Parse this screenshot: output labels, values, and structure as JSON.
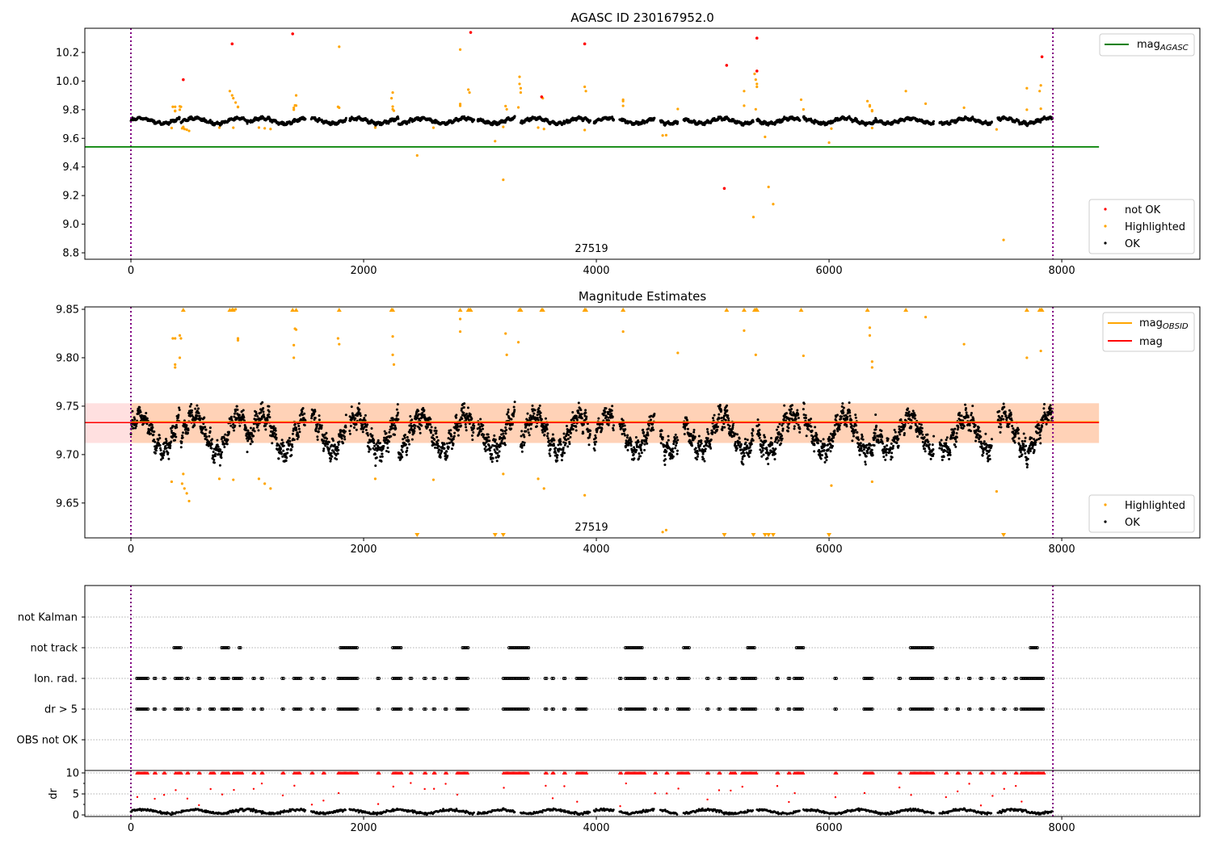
{
  "chart_data": [
    {
      "type": "scatter",
      "title": "AGASC ID 230167952.0",
      "xlim": [
        -396,
        9187
      ],
      "ylim": [
        8.755,
        10.369
      ],
      "xticks": [
        "0",
        "2000",
        "4000",
        "6000",
        "8000"
      ],
      "yticks": [
        "8.8",
        "9.0",
        "9.2",
        "9.4",
        "9.6",
        "9.8",
        "10.0",
        "10.2"
      ],
      "annotation": "27519",
      "legend_top": {
        "label": "mag",
        "sub": "AGASC",
        "color": "#008000"
      },
      "legend_bottom": [
        {
          "label": "not OK",
          "color": "#ff0000"
        },
        {
          "label": "Highlighted",
          "color": "#ffa500"
        },
        {
          "label": "OK",
          "color": "#000000"
        }
      ],
      "mag_agasc": 9.54,
      "vlines": [
        0,
        7924
      ],
      "not_ok": [
        [
          450,
          10.01
        ],
        [
          870,
          10.26
        ],
        [
          1390,
          10.33
        ],
        [
          2920,
          10.34
        ],
        [
          3530,
          9.89
        ],
        [
          3900,
          10.26
        ],
        [
          5100,
          9.25
        ],
        [
          5120,
          10.11
        ],
        [
          5380,
          10.3
        ],
        [
          5380,
          10.07
        ],
        [
          7830,
          10.17
        ]
      ]
    },
    {
      "type": "scatter",
      "title": "Magnitude Estimates",
      "xlim": [
        -396,
        9187
      ],
      "ylim": [
        9.614,
        9.8525
      ],
      "xticks": [
        "0",
        "2000",
        "4000",
        "6000",
        "8000"
      ],
      "yticks": [
        "9.65",
        "9.70",
        "9.75",
        "9.80",
        "9.85"
      ],
      "annotation": "27519",
      "legend_top": [
        {
          "label": "mag",
          "sub": "OBSID",
          "color": "#ffa500"
        },
        {
          "label": "mag",
          "sub": "",
          "color": "#ff0000"
        }
      ],
      "legend_bottom": [
        {
          "label": "Highlighted",
          "color": "#ffa500"
        },
        {
          "label": "OK",
          "color": "#000000"
        }
      ],
      "mag": 9.733,
      "mag_band": [
        9.712,
        9.753
      ],
      "band_end": 8320
    },
    {
      "type": "scatter",
      "title": "",
      "categories": [
        "not Kalman",
        "not track",
        "Ion. rad.",
        "dr > 5",
        "OBS not OK"
      ],
      "not_track_ranges": [
        [
          370,
          430
        ],
        [
          780,
          850
        ],
        [
          930,
          950
        ],
        [
          1800,
          1950
        ],
        [
          2250,
          2330
        ],
        [
          2850,
          2900
        ],
        [
          3250,
          3420
        ],
        [
          4250,
          4400
        ],
        [
          4750,
          4800
        ],
        [
          5300,
          5360
        ],
        [
          5720,
          5780
        ],
        [
          6700,
          6900
        ],
        [
          7730,
          7800
        ]
      ],
      "flag_ranges": [
        [
          50,
          150
        ],
        [
          200,
          220
        ],
        [
          280,
          300
        ],
        [
          380,
          440
        ],
        [
          480,
          500
        ],
        [
          580,
          600
        ],
        [
          680,
          720
        ],
        [
          780,
          850
        ],
        [
          880,
          960
        ],
        [
          1050,
          1070
        ],
        [
          1120,
          1140
        ],
        [
          1300,
          1320
        ],
        [
          1400,
          1460
        ],
        [
          1550,
          1570
        ],
        [
          1650,
          1670
        ],
        [
          1780,
          1950
        ],
        [
          2120,
          2140
        ],
        [
          2250,
          2330
        ],
        [
          2400,
          2420
        ],
        [
          2520,
          2540
        ],
        [
          2600,
          2620
        ],
        [
          2700,
          2720
        ],
        [
          2800,
          2900
        ],
        [
          3200,
          3420
        ],
        [
          3560,
          3580
        ],
        [
          3620,
          3640
        ],
        [
          3720,
          3740
        ],
        [
          3830,
          3920
        ],
        [
          4200,
          4220
        ],
        [
          4250,
          4420
        ],
        [
          4500,
          4520
        ],
        [
          4600,
          4620
        ],
        [
          4700,
          4800
        ],
        [
          4950,
          4970
        ],
        [
          5050,
          5070
        ],
        [
          5150,
          5200
        ],
        [
          5250,
          5380
        ],
        [
          5550,
          5570
        ],
        [
          5650,
          5670
        ],
        [
          5700,
          5780
        ],
        [
          6050,
          6070
        ],
        [
          6300,
          6380
        ],
        [
          6600,
          6620
        ],
        [
          6700,
          6900
        ],
        [
          7000,
          7020
        ],
        [
          7100,
          7120
        ],
        [
          7200,
          7220
        ],
        [
          7300,
          7320
        ],
        [
          7400,
          7420
        ],
        [
          7500,
          7520
        ],
        [
          7600,
          7620
        ],
        [
          7650,
          7850
        ]
      ]
    },
    {
      "type": "scatter",
      "ylabel": "dr",
      "ylim": [
        -0.38,
        10.58
      ],
      "yticks": [
        "0",
        "5",
        "10"
      ],
      "xticks": [
        "0",
        "2000",
        "4000",
        "6000",
        "8000"
      ],
      "dr_clip": 10
    }
  ],
  "observations": {
    "segments": [
      [
        0,
        420
      ],
      [
        430,
        1000
      ],
      [
        1000,
        1500
      ],
      [
        1550,
        1850
      ],
      [
        1880,
        2300
      ],
      [
        2300,
        2950
      ],
      [
        2980,
        3300
      ],
      [
        3350,
        3950
      ],
      [
        3980,
        4150
      ],
      [
        4200,
        4500
      ],
      [
        4550,
        4700
      ],
      [
        4750,
        5350
      ],
      [
        5380,
        5750
      ],
      [
        5780,
        6400
      ],
      [
        6400,
        6900
      ],
      [
        6950,
        7400
      ],
      [
        7450,
        7920
      ]
    ],
    "ok_mean": 9.722,
    "highlighted": [
      [
        380,
        9.82
      ],
      [
        380,
        9.79
      ],
      [
        430,
        9.82
      ],
      [
        450,
        9.68
      ],
      [
        480,
        9.66
      ],
      [
        850,
        9.93
      ],
      [
        870,
        9.9
      ],
      [
        880,
        9.88
      ],
      [
        900,
        9.85
      ],
      [
        920,
        9.82
      ],
      [
        1420,
        9.9
      ],
      [
        1410,
        9.83
      ],
      [
        1790,
        10.24
      ],
      [
        1780,
        9.82
      ],
      [
        2250,
        9.92
      ],
      [
        2240,
        9.88
      ],
      [
        2460,
        9.48
      ],
      [
        2830,
        10.22
      ],
      [
        2830,
        9.84
      ],
      [
        2900,
        9.94
      ],
      [
        2910,
        9.92
      ],
      [
        3130,
        9.58
      ],
      [
        3200,
        9.31
      ],
      [
        3340,
        10.03
      ],
      [
        3340,
        9.98
      ],
      [
        3350,
        9.95
      ],
      [
        3350,
        9.92
      ],
      [
        3540,
        9.88
      ],
      [
        3900,
        9.96
      ],
      [
        3910,
        9.93
      ],
      [
        4230,
        9.87
      ],
      [
        4230,
        9.86
      ],
      [
        4570,
        9.62
      ],
      [
        5270,
        9.93
      ],
      [
        5350,
        9.05
      ],
      [
        5360,
        10.05
      ],
      [
        5370,
        10.01
      ],
      [
        5380,
        9.98
      ],
      [
        5380,
        9.96
      ],
      [
        5450,
        9.61
      ],
      [
        5480,
        9.26
      ],
      [
        5520,
        9.14
      ],
      [
        5760,
        9.87
      ],
      [
        6000,
        9.57
      ],
      [
        6330,
        9.86
      ],
      [
        6660,
        9.93
      ],
      [
        7500,
        8.89
      ],
      [
        7700,
        9.95
      ],
      [
        7820,
        9.97
      ],
      [
        7810,
        9.93
      ],
      [
        360,
        9.82
      ],
      [
        420,
        9.823
      ],
      [
        420,
        9.8
      ],
      [
        380,
        9.793
      ],
      [
        440,
        9.67
      ],
      [
        460,
        9.665
      ],
      [
        500,
        9.652
      ],
      [
        920,
        9.818
      ],
      [
        1420,
        9.829
      ],
      [
        1400,
        9.813
      ],
      [
        1400,
        9.8
      ],
      [
        1790,
        9.814
      ],
      [
        2250,
        9.822
      ],
      [
        2250,
        9.803
      ],
      [
        2260,
        9.793
      ],
      [
        2830,
        9.827
      ],
      [
        3220,
        9.825
      ],
      [
        3230,
        9.803
      ],
      [
        3330,
        9.816
      ],
      [
        4230,
        9.827
      ],
      [
        4700,
        9.805
      ],
      [
        5270,
        9.828
      ],
      [
        5370,
        9.803
      ],
      [
        5780,
        9.802
      ],
      [
        6350,
        9.831
      ],
      [
        6350,
        9.823
      ],
      [
        6370,
        9.79
      ],
      [
        6370,
        9.796
      ],
      [
        6830,
        9.842
      ],
      [
        7160,
        9.814
      ],
      [
        7700,
        9.8
      ],
      [
        7820,
        9.807
      ],
      [
        1150,
        9.67
      ],
      [
        1200,
        9.665
      ],
      [
        1100,
        9.675
      ],
      [
        2100,
        9.675
      ],
      [
        2600,
        9.674
      ],
      [
        3500,
        9.675
      ],
      [
        3550,
        9.665
      ],
      [
        3900,
        9.658
      ],
      [
        4600,
        9.622
      ],
      [
        6020,
        9.668
      ],
      [
        6370,
        9.672
      ],
      [
        7440,
        9.662
      ],
      [
        760,
        9.675
      ],
      [
        880,
        9.674
      ],
      [
        350,
        9.672
      ],
      [
        3200,
        9.68
      ]
    ]
  }
}
